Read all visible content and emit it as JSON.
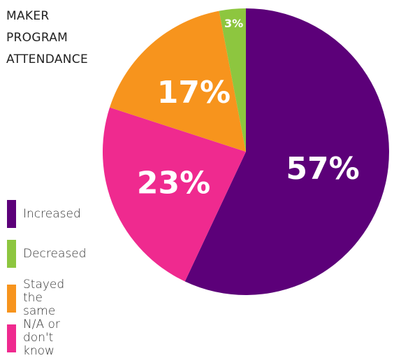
{
  "chart_data": {
    "type": "pie",
    "title": "MAKER PROGRAM ATTENDANCE",
    "categories": [
      "Increased",
      "N/A or don't know",
      "Stayed the same",
      "Decreased"
    ],
    "values": [
      57,
      23,
      17,
      3
    ],
    "value_labels": [
      "57%",
      "23%",
      "17%",
      "3%"
    ],
    "colors": [
      "#5c0079",
      "#ef2a8f",
      "#f7941d",
      "#8dc63f"
    ]
  }
}
